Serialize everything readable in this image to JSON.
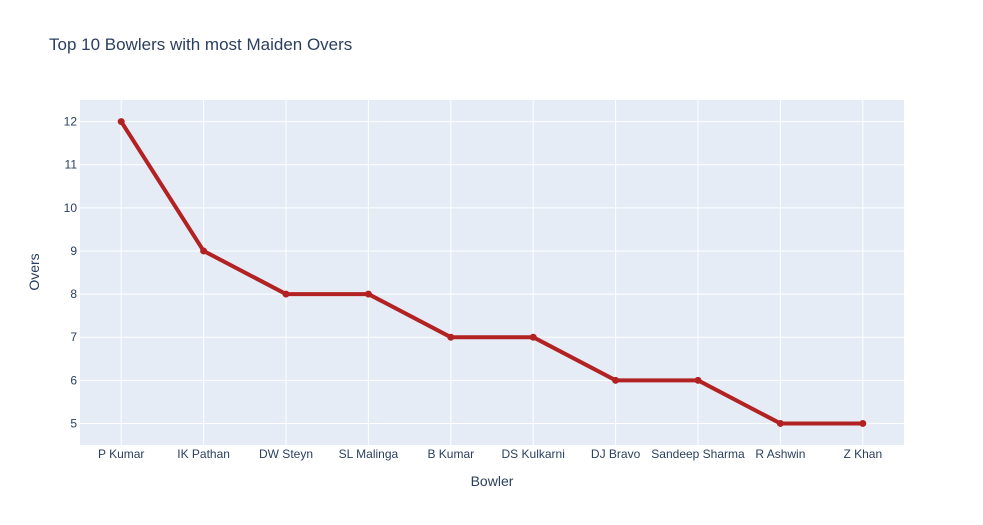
{
  "chart_data": {
    "type": "line",
    "title": "Top 10 Bowlers with most Maiden Overs",
    "xlabel": "Bowler",
    "ylabel": "Overs",
    "categories": [
      "P Kumar",
      "IK Pathan",
      "DW Steyn",
      "SL Malinga",
      "B Kumar",
      "DS Kulkarni",
      "DJ Bravo",
      "Sandeep Sharma",
      "R Ashwin",
      "Z Khan"
    ],
    "values": [
      12,
      9,
      8,
      8,
      7,
      7,
      6,
      6,
      5,
      5
    ],
    "ylim": [
      4.5,
      12.5
    ],
    "yticks": [
      5,
      6,
      7,
      8,
      9,
      10,
      11,
      12
    ],
    "grid": true,
    "colors": {
      "line": "#b22222",
      "plot_bg": "#e5ecf6",
      "grid": "#ffffff",
      "text": "#2a3f5f"
    }
  }
}
